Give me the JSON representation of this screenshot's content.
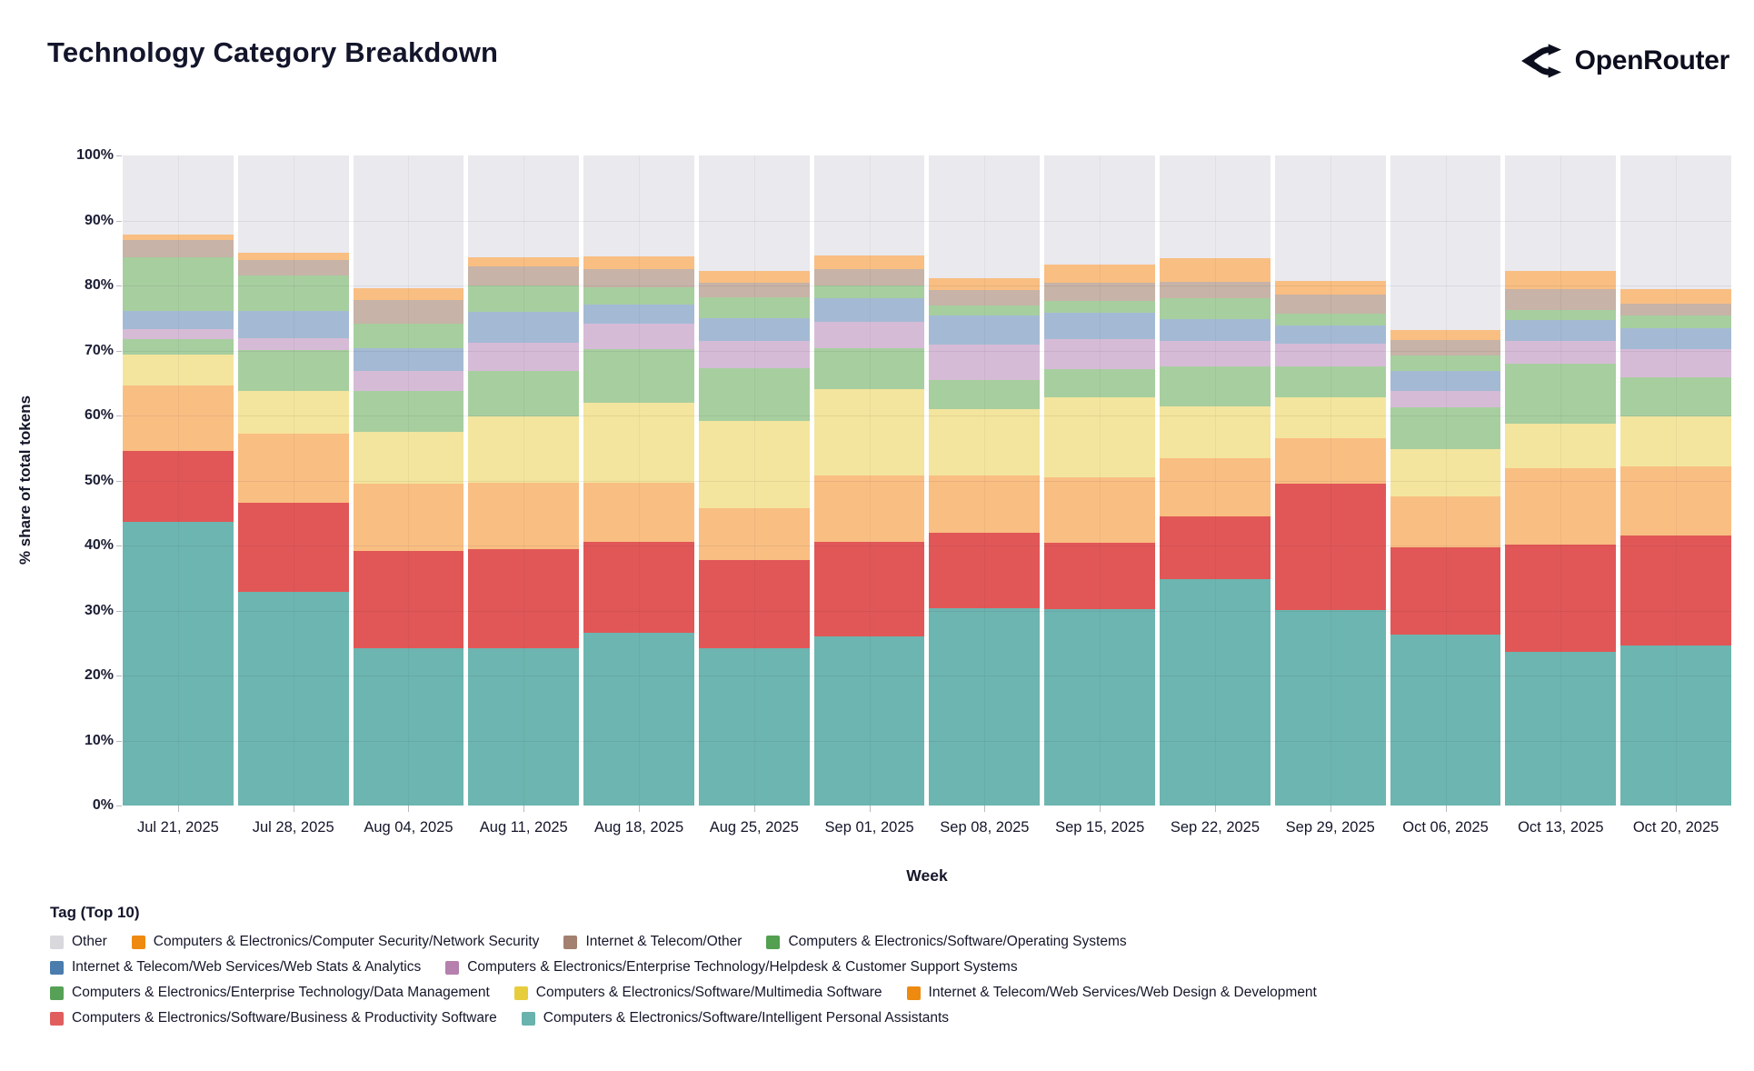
{
  "header": {
    "title": "Technology Category Breakdown",
    "brand": "OpenRouter"
  },
  "chart_data": {
    "type": "bar",
    "stacked": true,
    "title": "Technology Category Breakdown",
    "xlabel": "Week",
    "ylabel": "% share of total tokens",
    "ylim": [
      0,
      100
    ],
    "y_tick_step": 10,
    "y_tick_suffix": "%",
    "grid": true,
    "legend_position": "bottom",
    "categories": [
      "Jul 21, 2025",
      "Jul 28, 2025",
      "Aug 04, 2025",
      "Aug 11, 2025",
      "Aug 18, 2025",
      "Aug 25, 2025",
      "Sep 01, 2025",
      "Sep 08, 2025",
      "Sep 15, 2025",
      "Sep 22, 2025",
      "Sep 29, 2025",
      "Oct 06, 2025",
      "Oct 13, 2025",
      "Oct 20, 2025"
    ],
    "series": [
      {
        "key": "ipa",
        "name": "Computers & Electronics/Software/Intelligent Personal Assistants",
        "bar_color": "#6db5b0",
        "legend_color": "#69b2ad",
        "pattern": "none",
        "values": [
          43.7,
          32.8,
          24.2,
          24.2,
          26.6,
          24.2,
          26.0,
          30.3,
          30.2,
          34.8,
          30.1,
          26.3,
          23.7,
          24.6
        ]
      },
      {
        "key": "bps",
        "name": "Computers & Electronics/Software/Business & Productivity Software",
        "bar_color": "#e15757",
        "legend_color": "#e05e5e",
        "pattern": "none",
        "values": [
          10.9,
          13.8,
          15.0,
          15.2,
          13.9,
          13.6,
          14.5,
          11.7,
          10.2,
          9.7,
          19.4,
          13.4,
          16.4,
          17.0
        ]
      },
      {
        "key": "wdd",
        "name": "Internet & Telecom/Web Services/Web Design & Development",
        "bar_color": "#f9be82",
        "legend_color": "#ee8a10",
        "pattern": "none",
        "values": [
          10.0,
          10.6,
          10.3,
          10.3,
          9.1,
          7.9,
          10.3,
          8.8,
          10.1,
          9.0,
          7.0,
          7.9,
          11.8,
          10.6
        ]
      },
      {
        "key": "mms",
        "name": "Computers & Electronics/Software/Multimedia Software",
        "bar_color": "#f3e59d",
        "legend_color": "#e7cd3c",
        "pattern": "none",
        "values": [
          4.8,
          6.6,
          8.0,
          10.2,
          12.4,
          13.4,
          13.2,
          10.2,
          12.3,
          7.9,
          6.3,
          7.2,
          6.9,
          7.6
        ]
      },
      {
        "key": "dm",
        "name": "Computers & Electronics/Enterprise Technology/Data Management",
        "bar_color": "#a7ce9f",
        "legend_color": "#57a156",
        "pattern": "none",
        "values": [
          2.3,
          6.3,
          6.3,
          7.0,
          8.2,
          8.2,
          6.3,
          4.4,
          4.4,
          6.1,
          4.8,
          6.4,
          9.2,
          6.1
        ]
      },
      {
        "key": "hcs",
        "name": "Computers & Electronics/Enterprise Technology/Helpdesk & Customer Support Systems",
        "bar_color": "#d6bbd7",
        "legend_color": "#b57fae",
        "pattern": "dots",
        "values": [
          1.6,
          1.8,
          3.0,
          4.3,
          3.9,
          4.2,
          4.1,
          5.5,
          4.6,
          4.0,
          3.5,
          2.6,
          3.5,
          4.3
        ]
      },
      {
        "key": "wsa",
        "name": "Internet & Telecom/Web Services/Web Stats & Analytics",
        "bar_color": "#a4bad4",
        "legend_color": "#4a7cad",
        "pattern": "none",
        "values": [
          2.8,
          4.2,
          3.5,
          4.7,
          3.0,
          3.5,
          3.6,
          4.5,
          4.0,
          3.3,
          2.8,
          3.0,
          3.2,
          3.3
        ]
      },
      {
        "key": "os",
        "name": "Computers & Electronics/Software/Operating Systems",
        "bar_color": "#a7ce9f",
        "legend_color": "#53a050",
        "pattern": "none",
        "values": [
          8.2,
          5.4,
          3.8,
          4.1,
          2.6,
          3.2,
          2.0,
          1.5,
          1.9,
          3.2,
          1.8,
          2.4,
          1.5,
          1.9
        ]
      },
      {
        "key": "ito",
        "name": "Internet & Telecom/Other",
        "bar_color": "#c7b3a7",
        "legend_color": "#a3806f",
        "pattern": "dots",
        "values": [
          2.7,
          2.4,
          3.7,
          2.9,
          2.8,
          2.2,
          2.5,
          2.4,
          2.8,
          2.5,
          2.9,
          2.4,
          3.2,
          1.8
        ]
      },
      {
        "key": "ns",
        "name": "Computers & Electronics/Computer Security/Network Security",
        "bar_color": "#f9be82",
        "legend_color": "#ee8a10",
        "pattern": "none",
        "values": [
          0.8,
          1.1,
          1.8,
          1.4,
          2.0,
          1.8,
          2.1,
          1.8,
          2.7,
          3.7,
          2.1,
          1.6,
          2.9,
          2.2
        ]
      },
      {
        "key": "other",
        "name": "Other",
        "bar_color": "#e9e9ee",
        "legend_color": "#d8d8dd",
        "pattern": "none",
        "values": [
          12.2,
          15.0,
          20.4,
          15.7,
          15.5,
          17.8,
          15.4,
          18.9,
          16.8,
          15.8,
          19.3,
          26.8,
          17.7,
          20.6
        ]
      }
    ]
  },
  "legend": {
    "title": "Tag (Top 10)",
    "rows": [
      [
        "other",
        "ns",
        "ito",
        "os"
      ],
      [
        "wsa",
        "hcs"
      ],
      [
        "dm",
        "mms",
        "wdd"
      ],
      [
        "bps",
        "ipa"
      ]
    ]
  }
}
